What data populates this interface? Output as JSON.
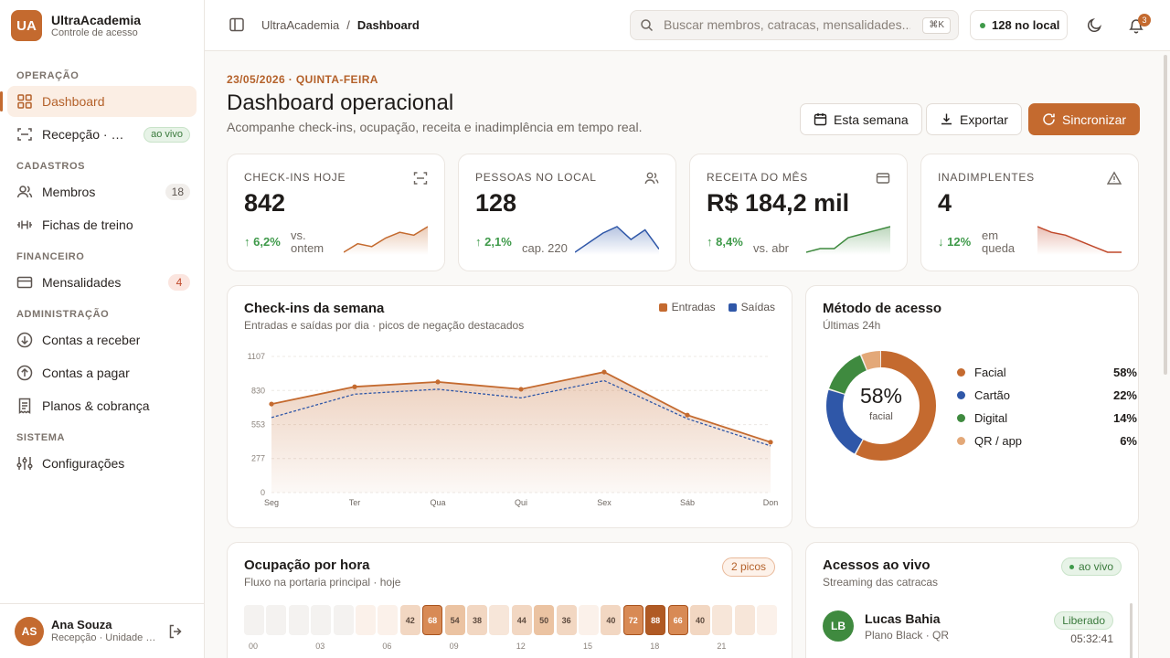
{
  "brand": {
    "logo": "UA",
    "name": "UltraAcademia",
    "subtitle": "Controle de acesso"
  },
  "sidebar": {
    "sections": [
      {
        "title": "OPERAÇÃO",
        "items": [
          {
            "label": "Dashboard",
            "icon": "dashboard-icon",
            "active": true
          },
          {
            "label": "Recepção · catracas",
            "icon": "scan-icon",
            "badge": "ao vivo"
          }
        ]
      },
      {
        "title": "CADASTROS",
        "items": [
          {
            "label": "Membros",
            "icon": "users-icon",
            "count": "18"
          },
          {
            "label": "Fichas de treino",
            "icon": "dumbbell-icon"
          }
        ]
      },
      {
        "title": "FINANCEIRO",
        "items": [
          {
            "label": "Mensalidades",
            "icon": "card-icon",
            "count": "4"
          }
        ]
      },
      {
        "title": "ADMINISTRAÇÃO",
        "items": [
          {
            "label": "Contas a receber",
            "icon": "arrow-down-circle-icon"
          },
          {
            "label": "Contas a pagar",
            "icon": "arrow-up-circle-icon"
          },
          {
            "label": "Planos & cobrança",
            "icon": "receipt-icon"
          }
        ]
      },
      {
        "title": "SISTEMA",
        "items": [
          {
            "label": "Configurações",
            "icon": "sliders-icon"
          }
        ]
      }
    ],
    "user": {
      "initials": "AS",
      "name": "Ana Souza",
      "role": "Recepção · Unidade Centro"
    }
  },
  "topbar": {
    "breadcrumb": [
      "UltraAcademia",
      "Dashboard"
    ],
    "search_placeholder": "Buscar membros, catracas, mensalidades...",
    "shortcut": "⌘K",
    "onsite": "128 no local",
    "notifications": "3"
  },
  "page": {
    "date": "23/05/2026 · QUINTA-FEIRA",
    "title": "Dashboard operacional",
    "subtitle": "Acompanhe check-ins, ocupação, receita e inadimplência em tempo real.",
    "btn_week": "Esta semana",
    "btn_export": "Exportar",
    "btn_sync": "Sincronizar"
  },
  "kpis": [
    {
      "label": "CHECK-INS HOJE",
      "value": "842",
      "delta": "6,2%",
      "dir": "up",
      "note": "vs. ontem",
      "spark": [
        3,
        6,
        5,
        8,
        10,
        9,
        12
      ],
      "color": "#c46a2f"
    },
    {
      "label": "PESSOAS NO LOCAL",
      "value": "128",
      "delta": "2,1%",
      "dir": "up",
      "note": "cap. 220",
      "spark": [
        2,
        5,
        8,
        10,
        6,
        9,
        3
      ],
      "color": "#2f57a8"
    },
    {
      "label": "RECEITA DO MÊS",
      "value": "R$ 184,2 mil",
      "delta": "8,4%",
      "dir": "up",
      "note": "vs. abr",
      "spark": [
        2,
        3,
        3,
        6,
        7,
        8,
        9
      ],
      "color": "#3f8a3f"
    },
    {
      "label": "INADIMPLENTES",
      "value": "4",
      "delta": "12%",
      "dir": "down",
      "note": "em queda",
      "spark": [
        11,
        9,
        8,
        6,
        4,
        2,
        2
      ],
      "color": "#c0492b"
    }
  ],
  "weekly": {
    "title": "Check-ins da semana",
    "subtitle": "Entradas e saídas por dia · picos de negação destacados",
    "legend": [
      "Entradas",
      "Saídas"
    ],
    "colors": {
      "in": "#c46a2f",
      "out": "#2f57a8"
    }
  },
  "access": {
    "title": "Método de acesso",
    "subtitle": "Últimas 24h",
    "center_value": "58%",
    "center_label": "facial",
    "items": [
      {
        "label": "Facial",
        "pct": "58%",
        "value": 58,
        "color": "#c46a2f"
      },
      {
        "label": "Cartão",
        "pct": "22%",
        "value": 22,
        "color": "#2f57a8"
      },
      {
        "label": "Digital",
        "pct": "14%",
        "value": 14,
        "color": "#3f8a3f"
      },
      {
        "label": "QR / app",
        "pct": "6%",
        "value": 6,
        "color": "#e3a878"
      }
    ]
  },
  "occupancy": {
    "title": "Ocupação por hora",
    "subtitle": "Fluxo na portaria principal · hoje",
    "badge": "2 picos",
    "hours": [
      5,
      2,
      2,
      2,
      2,
      8,
      12,
      42,
      68,
      54,
      38,
      22,
      44,
      50,
      36,
      12,
      40,
      72,
      88,
      66,
      40,
      20,
      18,
      14
    ],
    "labels": [
      "",
      "",
      "",
      "",
      "",
      "",
      "",
      "42",
      "68",
      "54",
      "38",
      "",
      "44",
      "50",
      "36",
      "",
      "40",
      "72",
      "88",
      "66",
      "40",
      "",
      "",
      ""
    ],
    "ticks": [
      "00",
      "03",
      "06",
      "09",
      "12",
      "15",
      "18",
      "21"
    ]
  },
  "live": {
    "title": "Acessos ao vivo",
    "subtitle": "Streaming das catracas",
    "badge": "ao vivo",
    "feed": [
      {
        "initials": "LB",
        "name": "Lucas Bahia",
        "plan": "Plano Black · QR",
        "status": "Liberado",
        "time": "05:32:41"
      }
    ]
  },
  "chart_data": {
    "type": "area",
    "title": "Check-ins da semana",
    "categories": [
      "Seg",
      "Ter",
      "Qua",
      "Qui",
      "Sex",
      "Sáb",
      "Don"
    ],
    "yticks": [
      0,
      277,
      553,
      830,
      1107
    ],
    "ylim": [
      0,
      1107
    ],
    "series": [
      {
        "name": "Entradas",
        "values": [
          720,
          860,
          900,
          840,
          980,
          630,
          410
        ]
      },
      {
        "name": "Saídas",
        "values": [
          610,
          800,
          840,
          770,
          910,
          600,
          380
        ]
      }
    ],
    "grid": true,
    "legend_position": "top-right"
  }
}
